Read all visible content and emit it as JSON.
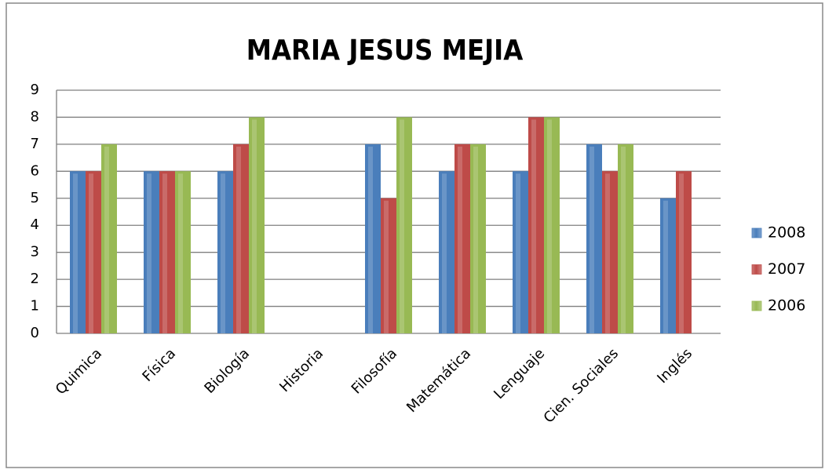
{
  "chart_data": {
    "type": "bar",
    "title": "MARIA JESUS MEJIA",
    "categories": [
      "Quimica",
      "Física",
      "Biología",
      "Historia",
      "Filosofía",
      "Matemática",
      "Lenguaje",
      "Cien. Sociales",
      "Inglés"
    ],
    "series": [
      {
        "name": "2008",
        "color": "#4a7ebb",
        "values": [
          6,
          6,
          6,
          null,
          7,
          6,
          6,
          7,
          5
        ]
      },
      {
        "name": "2007",
        "color": "#be4b48",
        "values": [
          6,
          6,
          7,
          null,
          5,
          7,
          8,
          6,
          6
        ]
      },
      {
        "name": "2006",
        "color": "#98b954",
        "values": [
          7,
          6,
          8,
          null,
          8,
          7,
          8,
          7,
          null
        ]
      }
    ],
    "ylim": [
      0,
      9
    ],
    "yticks": [
      0,
      1,
      2,
      3,
      4,
      5,
      6,
      7,
      8,
      9
    ],
    "grid": true,
    "legend": "right"
  }
}
